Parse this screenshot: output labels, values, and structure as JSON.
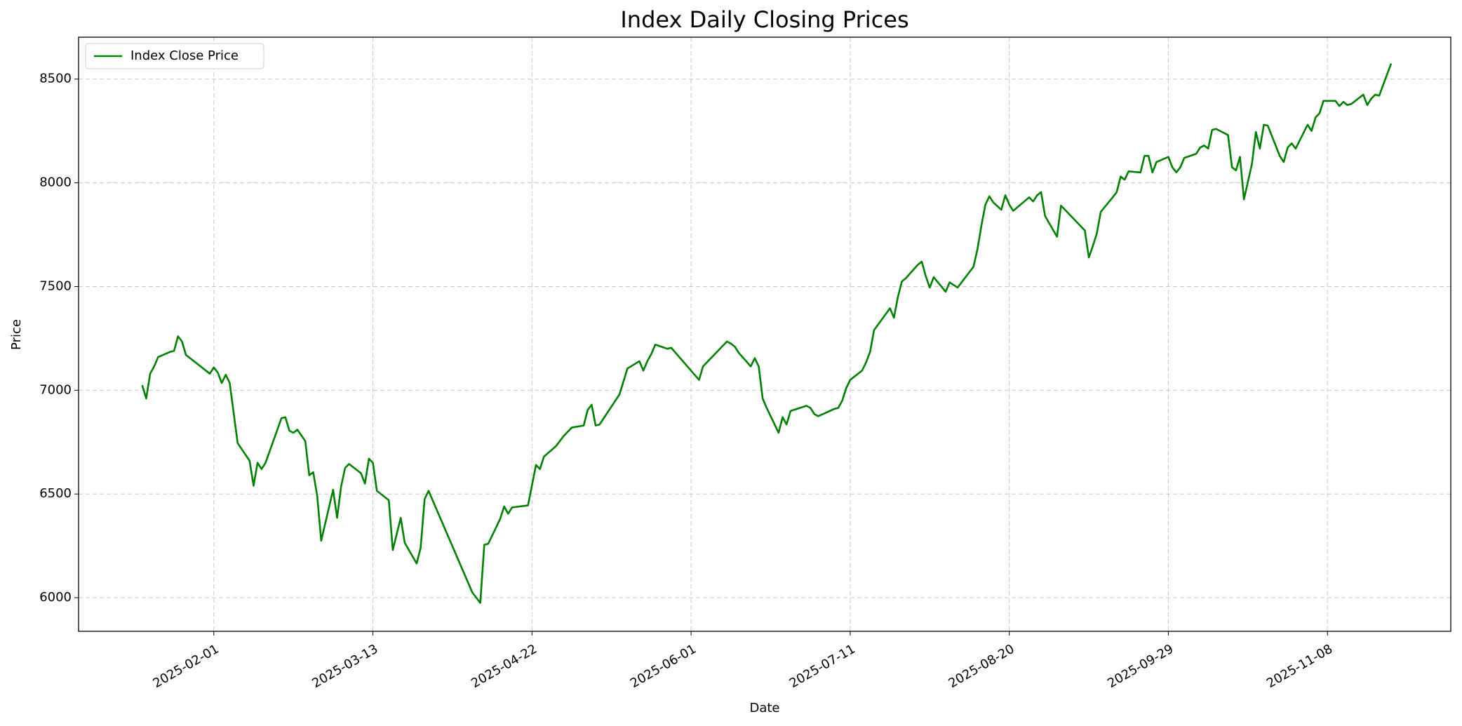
{
  "chart_data": {
    "type": "line",
    "title": "Index Daily Closing Prices",
    "xlabel": "Date",
    "ylabel": "Price",
    "x": [
      "2025-01-14",
      "2025-01-15",
      "2025-01-16",
      "2025-01-17",
      "2025-01-18",
      "2025-01-21",
      "2025-01-22",
      "2025-01-23",
      "2025-01-24",
      "2025-01-25",
      "2025-01-31",
      "2025-02-01",
      "2025-02-02",
      "2025-02-03",
      "2025-02-04",
      "2025-02-05",
      "2025-02-07",
      "2025-02-10",
      "2025-02-11",
      "2025-02-12",
      "2025-02-13",
      "2025-02-14",
      "2025-02-18",
      "2025-02-19",
      "2025-02-20",
      "2025-02-21",
      "2025-02-22",
      "2025-02-24",
      "2025-02-25",
      "2025-02-26",
      "2025-02-27",
      "2025-02-28",
      "2025-03-03",
      "2025-03-04",
      "2025-03-05",
      "2025-03-06",
      "2025-03-07",
      "2025-03-10",
      "2025-03-11",
      "2025-03-12",
      "2025-03-13",
      "2025-03-14",
      "2025-03-17",
      "2025-03-18",
      "2025-03-20",
      "2025-03-21",
      "2025-03-24",
      "2025-03-25",
      "2025-03-26",
      "2025-03-27",
      "2025-04-07",
      "2025-04-09",
      "2025-04-10",
      "2025-04-11",
      "2025-04-14",
      "2025-04-15",
      "2025-04-16",
      "2025-04-17",
      "2025-04-21",
      "2025-04-23",
      "2025-04-24",
      "2025-04-25",
      "2025-04-28",
      "2025-04-29",
      "2025-04-30",
      "2025-05-02",
      "2025-05-05",
      "2025-05-06",
      "2025-05-07",
      "2025-05-08",
      "2025-05-09",
      "2025-05-14",
      "2025-05-16",
      "2025-05-19",
      "2025-05-20",
      "2025-05-21",
      "2025-05-22",
      "2025-05-23",
      "2025-05-26",
      "2025-05-27",
      "2025-06-03",
      "2025-06-04",
      "2025-06-10",
      "2025-06-11",
      "2025-06-12",
      "2025-06-13",
      "2025-06-16",
      "2025-06-17",
      "2025-06-18",
      "2025-06-19",
      "2025-06-20",
      "2025-06-23",
      "2025-06-24",
      "2025-06-25",
      "2025-06-26",
      "2025-06-30",
      "2025-07-01",
      "2025-07-02",
      "2025-07-03",
      "2025-07-07",
      "2025-07-08",
      "2025-07-09",
      "2025-07-10",
      "2025-07-11",
      "2025-07-14",
      "2025-07-15",
      "2025-07-16",
      "2025-07-17",
      "2025-07-21",
      "2025-07-22",
      "2025-07-23",
      "2025-07-24",
      "2025-07-25",
      "2025-07-28",
      "2025-07-29",
      "2025-07-30",
      "2025-07-31",
      "2025-08-01",
      "2025-08-04",
      "2025-08-05",
      "2025-08-07",
      "2025-08-08",
      "2025-08-11",
      "2025-08-12",
      "2025-08-13",
      "2025-08-14",
      "2025-08-15",
      "2025-08-16",
      "2025-08-18",
      "2025-08-19",
      "2025-08-20",
      "2025-08-21",
      "2025-08-25",
      "2025-08-26",
      "2025-08-27",
      "2025-08-28",
      "2025-08-29",
      "2025-09-01",
      "2025-09-02",
      "2025-09-08",
      "2025-09-09",
      "2025-09-10",
      "2025-09-11",
      "2025-09-12",
      "2025-09-15",
      "2025-09-16",
      "2025-09-17",
      "2025-09-18",
      "2025-09-19",
      "2025-09-22",
      "2025-09-23",
      "2025-09-24",
      "2025-09-25",
      "2025-09-26",
      "2025-09-29",
      "2025-09-30",
      "2025-10-01",
      "2025-10-02",
      "2025-10-03",
      "2025-10-06",
      "2025-10-07",
      "2025-10-08",
      "2025-10-09",
      "2025-10-10",
      "2025-10-11",
      "2025-10-14",
      "2025-10-15",
      "2025-10-16",
      "2025-10-17",
      "2025-10-18",
      "2025-10-20",
      "2025-10-21",
      "2025-10-22",
      "2025-10-23",
      "2025-10-24",
      "2025-10-27",
      "2025-10-28",
      "2025-10-29",
      "2025-10-30",
      "2025-10-31",
      "2025-11-03",
      "2025-11-04",
      "2025-11-05",
      "2025-11-06",
      "2025-11-07",
      "2025-11-10",
      "2025-11-11",
      "2025-11-12",
      "2025-11-13",
      "2025-11-14",
      "2025-11-17",
      "2025-11-18",
      "2025-11-19",
      "2025-11-20",
      "2025-11-21",
      "2025-11-24"
    ],
    "series": [
      {
        "name": "Index Close Price",
        "color": "#008000",
        "values": [
          7025,
          6960,
          7080,
          7115,
          7160,
          7185,
          7190,
          7260,
          7235,
          7170,
          7080,
          7110,
          7085,
          7035,
          7075,
          7035,
          6745,
          6660,
          6540,
          6650,
          6620,
          6650,
          6865,
          6870,
          6805,
          6795,
          6810,
          6755,
          6590,
          6605,
          6490,
          6275,
          6520,
          6385,
          6535,
          6625,
          6645,
          6600,
          6550,
          6670,
          6650,
          6515,
          6470,
          6230,
          6385,
          6265,
          6165,
          6240,
          6475,
          6515,
          6025,
          5975,
          6255,
          6260,
          6380,
          6440,
          6405,
          6435,
          6445,
          6640,
          6620,
          6680,
          6730,
          6755,
          6780,
          6820,
          6830,
          6905,
          6930,
          6830,
          6835,
          6980,
          7105,
          7140,
          7095,
          7140,
          7175,
          7220,
          7200,
          7205,
          7050,
          7115,
          7235,
          7225,
          7210,
          7180,
          7115,
          7155,
          7115,
          6960,
          6915,
          6795,
          6870,
          6835,
          6900,
          6925,
          6915,
          6885,
          6875,
          6910,
          6915,
          6950,
          7010,
          7050,
          7095,
          7135,
          7185,
          7290,
          7395,
          7350,
          7450,
          7525,
          7540,
          7605,
          7620,
          7550,
          7495,
          7545,
          7475,
          7520,
          7495,
          7520,
          7595,
          7680,
          7795,
          7895,
          7935,
          7905,
          7870,
          7940,
          7895,
          7865,
          7930,
          7910,
          7940,
          7955,
          7840,
          7740,
          7890,
          7770,
          7640,
          7695,
          7755,
          7860,
          7930,
          7955,
          8030,
          8015,
          8055,
          8050,
          8130,
          8130,
          8050,
          8100,
          8125,
          8075,
          8050,
          8075,
          8120,
          8140,
          8170,
          8180,
          8165,
          8255,
          8260,
          8230,
          8075,
          8060,
          8125,
          7920,
          8090,
          8245,
          8165,
          8280,
          8275,
          8130,
          8100,
          8170,
          8190,
          8165,
          8280,
          8250,
          8315,
          8335,
          8395,
          8395,
          8370,
          8390,
          8375,
          8380,
          8425,
          8375,
          8405,
          8425,
          8420,
          8575
        ]
      }
    ],
    "xlim": [
      "2024-12-29",
      "2025-12-09"
    ],
    "xticks": [
      "2025-02-01",
      "2025-03-13",
      "2025-04-22",
      "2025-06-01",
      "2025-07-11",
      "2025-08-20",
      "2025-09-29",
      "2025-11-08"
    ],
    "ylim": [
      5838,
      8702
    ],
    "yticks": [
      6000,
      6500,
      7000,
      7500,
      8000,
      8500
    ],
    "grid": true,
    "legend": "upper left"
  }
}
